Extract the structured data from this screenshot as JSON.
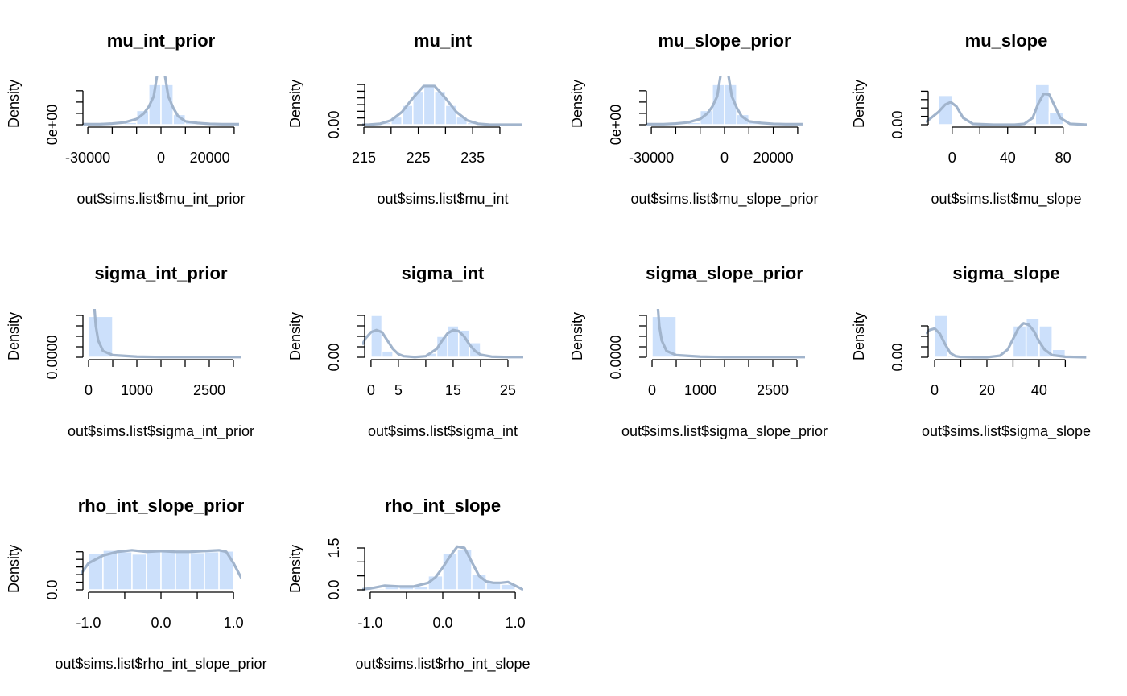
{
  "chart_data": [
    {
      "type": "histogram",
      "title": "mu_int_prior",
      "xlabel": "out$sims.list$mu_int_prior",
      "ylabel": "Density",
      "bins": [
        -30000,
        -25000,
        -20000,
        -15000,
        -10000,
        -5000,
        0,
        5000,
        10000,
        15000,
        20000,
        25000,
        30000
      ],
      "counts": [
        1e-06,
        1e-06,
        2e-06,
        4e-06,
        2.5e-05,
        7.1e-05,
        7.1e-05,
        1.8e-05,
        6e-06,
        2e-06,
        1e-06,
        1e-06
      ],
      "density_x": [
        -32000,
        -25000,
        -20000,
        -15000,
        -10000,
        -7000,
        -5000,
        -3000,
        -1500,
        0,
        1500,
        3000,
        5000,
        7000,
        10000,
        15000,
        20000,
        25000,
        32000
      ],
      "density_y": [
        1e-06,
        1e-06,
        2e-06,
        4e-06,
        1e-05,
        2e-05,
        3.2e-05,
        5e-05,
        9e-05,
        0.00013,
        9e-05,
        5e-05,
        3e-05,
        1.5e-05,
        6e-06,
        3e-06,
        1.5e-06,
        1e-06,
        1e-06
      ],
      "xlim": [
        -33000,
        33000
      ],
      "xticks": [
        -30000,
        0,
        20000
      ],
      "xminorticks": [
        -20000,
        -10000,
        10000,
        30000
      ],
      "ylim": [
        0,
        7.4e-05
      ],
      "yticks": [
        {
          "value": 0,
          "label": "0e+00"
        }
      ],
      "yminorticks": [
        2e-05,
        4e-05,
        6e-05
      ],
      "bar_color": "#cce0fb",
      "line_color": "#a1b4cc"
    },
    {
      "type": "histogram",
      "title": "mu_int",
      "xlabel": "out$sims.list$mu_int",
      "ylabel": "Density",
      "bins": [
        216,
        218,
        220,
        222,
        224,
        226,
        228,
        230,
        232,
        234,
        236,
        238,
        240
      ],
      "counts": [
        0.0012,
        0.0064,
        0.0231,
        0.0579,
        0.1,
        0.121,
        0.1,
        0.0579,
        0.0231,
        0.0064,
        0.0012,
        0.0002
      ],
      "density_x": [
        214,
        216,
        218,
        220,
        222,
        224,
        226,
        228,
        230,
        232,
        234,
        236,
        238,
        240,
        242,
        244
      ],
      "density_y": [
        5e-05,
        0.0005,
        0.0029,
        0.0128,
        0.038,
        0.0794,
        0.1155,
        0.1155,
        0.0794,
        0.038,
        0.0128,
        0.0029,
        0.0005,
        5e-05,
        0,
        0
      ],
      "xlim": [
        214.7,
        244.3
      ],
      "xticks": [
        215,
        225,
        235
      ],
      "xminorticks": [
        220,
        230,
        240
      ],
      "ylim": [
        0,
        0.125
      ],
      "yticks": [
        {
          "value": 0,
          "label": "0.00"
        }
      ],
      "yminorticks": [
        0.02,
        0.04,
        0.06,
        0.08,
        0.1,
        0.12
      ],
      "bar_color": "#cce0fb",
      "line_color": "#a1b4cc"
    },
    {
      "type": "histogram",
      "title": "mu_slope_prior",
      "xlabel": "out$sims.list$mu_slope_prior",
      "ylabel": "Density",
      "bins": [
        -30000,
        -25000,
        -20000,
        -15000,
        -10000,
        -5000,
        0,
        5000,
        10000,
        15000,
        20000,
        25000,
        30000
      ],
      "counts": [
        1e-06,
        1e-06,
        2e-06,
        4e-06,
        2.5e-05,
        7.1e-05,
        7.1e-05,
        1.8e-05,
        6e-06,
        2e-06,
        1e-06,
        1e-06
      ],
      "density_x": [
        -32000,
        -25000,
        -20000,
        -15000,
        -10000,
        -7000,
        -5000,
        -3000,
        -1500,
        0,
        1500,
        3000,
        5000,
        7000,
        10000,
        15000,
        20000,
        25000,
        32000
      ],
      "density_y": [
        1e-06,
        1e-06,
        2e-06,
        4e-06,
        1e-05,
        2e-05,
        3.2e-05,
        5e-05,
        9e-05,
        0.00013,
        9e-05,
        5e-05,
        3e-05,
        1.5e-05,
        6e-06,
        3e-06,
        1.5e-06,
        1e-06,
        1e-06
      ],
      "xlim": [
        -33000,
        33000
      ],
      "xticks": [
        -30000,
        0,
        20000
      ],
      "xminorticks": [
        -20000,
        -10000,
        10000,
        30000
      ],
      "ylim": [
        0,
        7.4e-05
      ],
      "yticks": [
        {
          "value": 0,
          "label": "0e+00"
        }
      ],
      "yminorticks": [
        2e-05,
        4e-05,
        6e-05
      ],
      "bar_color": "#cce0fb",
      "line_color": "#a1b4cc"
    },
    {
      "type": "histogram",
      "title": "mu_slope",
      "xlabel": "out$sims.list$mu_slope",
      "ylabel": "Density",
      "bins": [
        -10,
        0,
        10,
        20,
        30,
        40,
        50,
        60,
        70,
        80,
        90
      ],
      "counts": [
        0.035,
        0.001,
        0,
        0,
        0,
        0,
        0.002,
        0.048,
        0.015,
        0
      ],
      "density_x": [
        -19,
        -10,
        -5,
        -1,
        3,
        8,
        15,
        30,
        45,
        52,
        58,
        62,
        66,
        70,
        74,
        78,
        85,
        97
      ],
      "density_y": [
        0.003,
        0.015,
        0.024,
        0.027,
        0.022,
        0.008,
        0.001,
        0,
        0,
        0.001,
        0.008,
        0.025,
        0.037,
        0.036,
        0.022,
        0.008,
        0.001,
        0
      ],
      "xlim": [
        -19,
        97
      ],
      "xticks": [
        0,
        40,
        80
      ],
      "xminorticks": [
        20,
        60
      ],
      "ylim": [
        0,
        0.05
      ],
      "yticks": [
        {
          "value": 0,
          "label": "0.00"
        }
      ],
      "yminorticks": [
        0.01,
        0.02,
        0.03,
        0.04
      ],
      "bar_color": "#cce0fb",
      "line_color": "#a1b4cc"
    },
    {
      "type": "histogram",
      "title": "sigma_int_prior",
      "xlabel": "out$sims.list$sigma_int_prior",
      "ylabel": "Density",
      "bins": [
        0,
        500,
        1000,
        1500,
        2000,
        2500,
        3000
      ],
      "counts": [
        0.00195,
        3e-05,
        1e-05,
        1e-05,
        1e-05,
        1e-05
      ],
      "density_x": [
        -50,
        0,
        50,
        100,
        150,
        200,
        300,
        500,
        1000,
        1500,
        2000,
        2500,
        3000,
        3167
      ],
      "density_y": [
        0.003,
        0.006,
        0.005,
        0.003,
        0.0015,
        0.0008,
        0.0003,
        0.0001,
        3e-05,
        1e-05,
        1e-05,
        1e-05,
        1e-05,
        1e-05
      ],
      "xlim": [
        -167,
        3167
      ],
      "xticks": [
        0,
        1000,
        2500
      ],
      "xminorticks": [
        500,
        1500,
        2000,
        3000
      ],
      "ylim": [
        0,
        0.002
      ],
      "yticks": [
        {
          "value": 0,
          "label": "0.0000"
        }
      ],
      "yminorticks": [
        0.0005,
        0.001,
        0.0015,
        0.002
      ],
      "bar_color": "#cce0fb",
      "line_color": "#a1b4cc"
    },
    {
      "type": "histogram",
      "title": "sigma_int",
      "xlabel": "out$sims.list$sigma_int",
      "ylabel": "Density",
      "bins": [
        0,
        2,
        4,
        6,
        8,
        10,
        12,
        14,
        16,
        18,
        20,
        22,
        24,
        26
      ],
      "counts": [
        0.2,
        0.03,
        0.005,
        0,
        0,
        0.02,
        0.1,
        0.15,
        0.13,
        0.07,
        0.01,
        0,
        0
      ],
      "density_x": [
        -1.6,
        -1,
        0,
        1,
        2,
        3,
        4,
        5,
        6,
        8,
        10,
        12,
        13,
        14,
        15,
        16,
        17,
        18,
        19,
        20,
        22,
        25,
        27.8
      ],
      "density_y": [
        0.06,
        0.09,
        0.12,
        0.13,
        0.12,
        0.08,
        0.04,
        0.015,
        0.005,
        0.001,
        0.005,
        0.04,
        0.08,
        0.115,
        0.13,
        0.125,
        0.1,
        0.06,
        0.03,
        0.012,
        0.003,
        0.001,
        0.001
      ],
      "xlim": [
        -1.6,
        27.8
      ],
      "xticks": [
        0,
        5,
        15,
        25
      ],
      "xminorticks": [
        10,
        20
      ],
      "ylim": [
        0,
        0.2
      ],
      "yticks": [
        {
          "value": 0,
          "label": "0.00"
        }
      ],
      "yminorticks": [
        0.05,
        0.1,
        0.15,
        0.2
      ],
      "bar_color": "#cce0fb",
      "line_color": "#a1b4cc"
    },
    {
      "type": "histogram",
      "title": "sigma_slope_prior",
      "xlabel": "out$sims.list$sigma_slope_prior",
      "ylabel": "Density",
      "bins": [
        0,
        500,
        1000,
        1500,
        2000,
        2500,
        3000
      ],
      "counts": [
        0.00195,
        3e-05,
        1e-05,
        1e-05,
        1e-05,
        1e-05
      ],
      "density_x": [
        -50,
        0,
        50,
        100,
        150,
        200,
        300,
        500,
        1000,
        1500,
        2000,
        2500,
        3000,
        3167
      ],
      "density_y": [
        0.003,
        0.006,
        0.005,
        0.003,
        0.0015,
        0.0008,
        0.0003,
        0.0001,
        3e-05,
        1e-05,
        1e-05,
        1e-05,
        1e-05,
        1e-05
      ],
      "xlim": [
        -167,
        3167
      ],
      "xticks": [
        0,
        1000,
        2500
      ],
      "xminorticks": [
        500,
        1500,
        2000,
        3000
      ],
      "ylim": [
        0,
        0.002
      ],
      "yticks": [
        {
          "value": 0,
          "label": "0.0000"
        }
      ],
      "yminorticks": [
        0.0005,
        0.001,
        0.0015,
        0.002
      ],
      "bar_color": "#cce0fb",
      "line_color": "#a1b4cc"
    },
    {
      "type": "histogram",
      "title": "sigma_slope",
      "xlabel": "out$sims.list$sigma_slope",
      "ylabel": "Density",
      "bins": [
        0,
        5,
        10,
        15,
        20,
        25,
        30,
        35,
        40,
        45,
        50,
        55
      ],
      "counts": [
        0.08,
        0.003,
        0,
        0,
        0,
        0.002,
        0.06,
        0.075,
        0.06,
        0.015,
        0.002
      ],
      "density_x": [
        -3.4,
        -2,
        0,
        2,
        4,
        6,
        8,
        10,
        15,
        20,
        25,
        28,
        30,
        32,
        34,
        36,
        38,
        40,
        42,
        45,
        50,
        58
      ],
      "density_y": [
        0.045,
        0.052,
        0.055,
        0.045,
        0.025,
        0.008,
        0.002,
        0.0005,
        0,
        0,
        0.003,
        0.015,
        0.035,
        0.055,
        0.065,
        0.062,
        0.05,
        0.03,
        0.015,
        0.004,
        0.001,
        0
      ],
      "xlim": [
        -3.4,
        58.2
      ],
      "xticks": [
        0,
        20,
        40
      ],
      "xminorticks": [
        10,
        30,
        50
      ],
      "ylim": [
        0,
        0.08
      ],
      "yticks": [
        {
          "value": 0,
          "label": "0.00"
        }
      ],
      "yminorticks": [
        0.02,
        0.04,
        0.06
      ],
      "bar_color": "#cce0fb",
      "line_color": "#a1b4cc"
    },
    {
      "type": "histogram",
      "title": "rho_int_slope_prior",
      "xlabel": "out$sims.list$rho_int_slope_prior",
      "ylabel": "Density",
      "bins": [
        -1,
        -0.8,
        -0.6,
        -0.4,
        -0.2,
        0,
        0.2,
        0.4,
        0.6,
        0.8,
        1
      ],
      "counts": [
        0.48,
        0.52,
        0.5,
        0.47,
        0.5,
        0.52,
        0.5,
        0.49,
        0.5,
        0.51
      ],
      "density_x": [
        -1.11,
        -1,
        -0.8,
        -0.6,
        -0.4,
        -0.2,
        0,
        0.2,
        0.4,
        0.6,
        0.8,
        0.9,
        1,
        1.11
      ],
      "density_y": [
        0.2,
        0.35,
        0.45,
        0.5,
        0.52,
        0.5,
        0.51,
        0.5,
        0.5,
        0.51,
        0.52,
        0.5,
        0.35,
        0.15
      ],
      "xlim": [
        -1.11,
        1.11
      ],
      "xticks": [
        {
          "value": -1,
          "label": "-1.0"
        },
        {
          "value": 0,
          "label": "0.0"
        },
        {
          "value": 1,
          "label": "1.0"
        }
      ],
      "xminorticks": [
        -0.5,
        0.5
      ],
      "ylim": [
        0,
        0.55
      ],
      "yticks": [
        {
          "value": 0,
          "label": "0.0"
        }
      ],
      "yminorticks": [
        0.1,
        0.2,
        0.3,
        0.4,
        0.5
      ],
      "bar_color": "#cce0fb",
      "line_color": "#a1b4cc"
    },
    {
      "type": "histogram",
      "title": "rho_int_slope",
      "xlabel": "out$sims.list$rho_int_slope",
      "ylabel": "Density",
      "bins": [
        -1,
        -0.8,
        -0.6,
        -0.4,
        -0.2,
        0,
        0.2,
        0.4,
        0.6,
        0.8,
        1
      ],
      "counts": [
        0.05,
        0.12,
        0.1,
        0.12,
        0.5,
        1.3,
        1.45,
        0.55,
        0.25,
        0.2
      ],
      "density_x": [
        -1.11,
        -1,
        -0.8,
        -0.6,
        -0.4,
        -0.2,
        -0.1,
        0,
        0.1,
        0.2,
        0.3,
        0.4,
        0.5,
        0.6,
        0.7,
        0.8,
        0.9,
        1,
        1.11
      ],
      "density_y": [
        0.02,
        0.05,
        0.15,
        0.12,
        0.12,
        0.25,
        0.45,
        0.8,
        1.2,
        1.55,
        1.5,
        1,
        0.5,
        0.3,
        0.25,
        0.25,
        0.28,
        0.15,
        0
      ],
      "xlim": [
        -1.11,
        1.11
      ],
      "xticks": [
        {
          "value": -1,
          "label": "-1.0"
        },
        {
          "value": 0,
          "label": "0.0"
        },
        {
          "value": 1,
          "label": "1.0"
        }
      ],
      "xminorticks": [
        -0.5,
        0.5
      ],
      "ylim": [
        0,
        1.5
      ],
      "yticks": [
        {
          "value": 0,
          "label": "0.0"
        },
        1.5
      ],
      "yminorticks": [
        0.5,
        1
      ],
      "bar_color": "#cce0fb",
      "line_color": "#a1b4cc"
    }
  ]
}
